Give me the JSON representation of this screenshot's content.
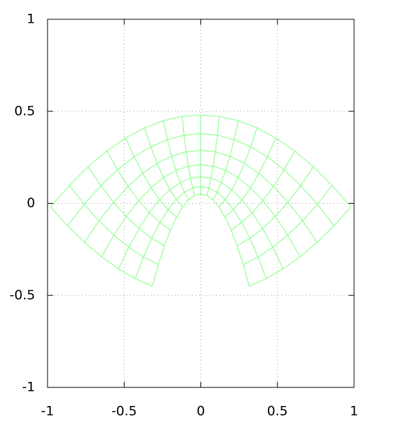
{
  "chart_data": {
    "type": "mesh",
    "color": "#80ff80",
    "grid": true,
    "xlim": [
      -1,
      1
    ],
    "ylim": [
      -1,
      1
    ],
    "xticks": [
      -1,
      -0.5,
      0,
      0.5,
      1
    ],
    "yticks": [
      -1,
      -0.5,
      0,
      0.5,
      1
    ],
    "rows": [
      {
        "x": [
          -0.316,
          -0.277,
          -0.237,
          -0.198,
          -0.158,
          -0.119,
          -0.079,
          -0.04,
          0,
          0.04,
          0.079,
          0.119,
          0.158,
          0.198,
          0.237,
          0.277,
          0.316
        ],
        "y": [
          -0.45,
          -0.333,
          -0.231,
          -0.145,
          -0.075,
          -0.02,
          0.019,
          0.042,
          0.05,
          0.042,
          0.019,
          -0.02,
          -0.075,
          -0.145,
          -0.231,
          -0.333,
          -0.45
        ]
      },
      {
        "x": [
          -0.427,
          -0.374,
          -0.32,
          -0.267,
          -0.213,
          -0.16,
          -0.107,
          -0.053,
          0,
          0.053,
          0.107,
          0.16,
          0.213,
          0.267,
          0.32,
          0.374,
          0.427
        ],
        "y": [
          -0.409,
          -0.292,
          -0.19,
          -0.104,
          -0.034,
          0.021,
          0.06,
          0.083,
          0.091,
          0.083,
          0.06,
          0.021,
          -0.034,
          -0.104,
          -0.19,
          -0.292,
          -0.409
        ]
      },
      {
        "x": [
          -0.537,
          -0.47,
          -0.403,
          -0.336,
          -0.269,
          -0.202,
          -0.134,
          -0.067,
          0,
          0.067,
          0.134,
          0.202,
          0.269,
          0.336,
          0.403,
          0.47,
          0.537
        ],
        "y": [
          -0.356,
          -0.238,
          -0.137,
          -0.051,
          0.019,
          0.074,
          0.113,
          0.137,
          0.144,
          0.137,
          0.113,
          0.074,
          0.019,
          -0.051,
          -0.137,
          -0.238,
          -0.356
        ]
      },
      {
        "x": [
          -0.648,
          -0.567,
          -0.486,
          -0.405,
          -0.324,
          -0.243,
          -0.162,
          -0.081,
          0,
          0.081,
          0.162,
          0.243,
          0.324,
          0.405,
          0.486,
          0.567,
          0.648
        ],
        "y": [
          -0.29,
          -0.173,
          -0.071,
          0.015,
          0.085,
          0.14,
          0.179,
          0.202,
          0.21,
          0.202,
          0.179,
          0.14,
          0.085,
          0.015,
          -0.071,
          -0.173,
          -0.29
        ]
      },
      {
        "x": [
          -0.759,
          -0.664,
          -0.569,
          -0.474,
          -0.379,
          -0.285,
          -0.19,
          -0.095,
          0,
          0.095,
          0.19,
          0.285,
          0.379,
          0.474,
          0.569,
          0.664,
          0.759
        ],
        "y": [
          -0.212,
          -0.095,
          0.006,
          0.092,
          0.163,
          0.217,
          0.256,
          0.28,
          0.288,
          0.28,
          0.256,
          0.217,
          0.163,
          0.092,
          0.006,
          -0.095,
          -0.212
        ]
      },
      {
        "x": [
          -0.869,
          -0.761,
          -0.652,
          -0.543,
          -0.435,
          -0.326,
          -0.217,
          -0.109,
          0,
          0.109,
          0.217,
          0.326,
          0.435,
          0.543,
          0.652,
          0.761,
          0.869
        ],
        "y": [
          -0.122,
          -0.005,
          0.096,
          0.182,
          0.253,
          0.307,
          0.346,
          0.37,
          0.378,
          0.37,
          0.346,
          0.307,
          0.253,
          0.182,
          0.096,
          -0.005,
          -0.122
        ]
      },
      {
        "x": [
          -0.98,
          -0.857,
          -0.735,
          -0.612,
          -0.49,
          -0.367,
          -0.245,
          -0.122,
          0,
          0.122,
          0.245,
          0.367,
          0.49,
          0.612,
          0.735,
          0.857,
          0.98
        ],
        "y": [
          -0.02,
          0.097,
          0.199,
          0.285,
          0.355,
          0.41,
          0.449,
          0.472,
          0.48,
          0.472,
          0.449,
          0.41,
          0.355,
          0.285,
          0.199,
          0.097,
          -0.02
        ]
      }
    ]
  }
}
